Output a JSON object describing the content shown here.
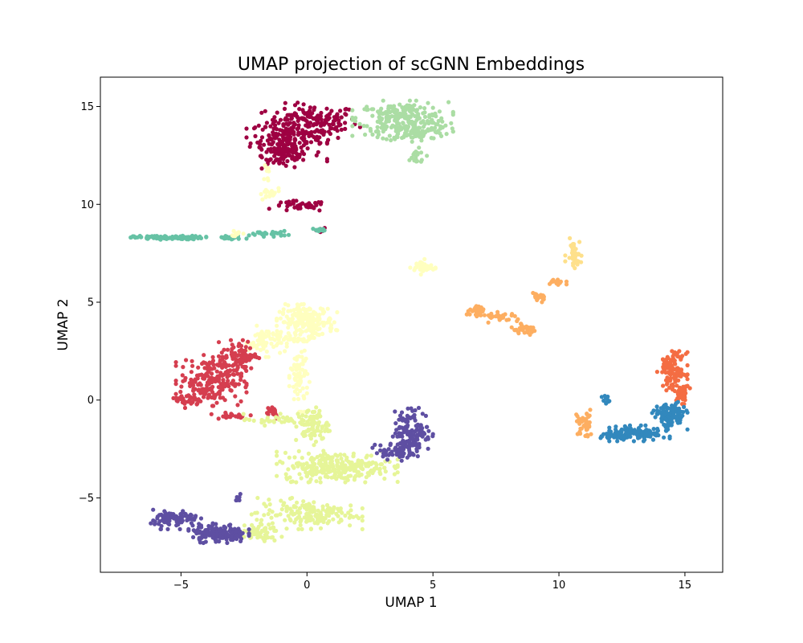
{
  "chart_data": {
    "type": "scatter",
    "title": "UMAP projection of scGNN Embeddings",
    "xlabel": "UMAP 1",
    "ylabel": "UMAP 2",
    "xlim": [
      -8.2,
      16.5
    ],
    "ylim": [
      -8.8,
      16.5
    ],
    "xticks": [
      {
        "v": -5,
        "label": "−5"
      },
      {
        "v": 0,
        "label": "0"
      },
      {
        "v": 5,
        "label": "5"
      },
      {
        "v": 10,
        "label": "10"
      },
      {
        "v": 15,
        "label": "15"
      }
    ],
    "yticks": [
      {
        "v": -5,
        "label": "−5"
      },
      {
        "v": 0,
        "label": "0"
      },
      {
        "v": 5,
        "label": "5"
      },
      {
        "v": 10,
        "label": "10"
      },
      {
        "v": 15,
        "label": "15"
      }
    ],
    "grid": false,
    "legend": "none",
    "clusters": [
      {
        "color": "#9e0142",
        "regions": [
          [
            0.2,
            14.2,
            2.0,
            1.0,
            160
          ],
          [
            -0.8,
            13.3,
            1.6,
            1.1,
            160
          ],
          [
            -0.9,
            12.5,
            1.0,
            0.8,
            60
          ],
          [
            -0.3,
            9.9,
            1.2,
            0.3,
            40
          ],
          [
            0.5,
            8.7,
            0.3,
            0.15,
            10
          ]
        ]
      },
      {
        "color": "#abdda4",
        "regions": [
          [
            3.8,
            14.4,
            2.0,
            0.9,
            220
          ],
          [
            4.3,
            13.7,
            1.5,
            0.5,
            90
          ],
          [
            4.3,
            12.4,
            0.5,
            0.5,
            20
          ]
        ]
      },
      {
        "color": "#66c2a5",
        "regions": [
          [
            -5.5,
            8.3,
            1.5,
            0.1,
            120
          ],
          [
            -3.0,
            8.3,
            0.6,
            0.12,
            30
          ],
          [
            -1.5,
            8.5,
            0.8,
            0.15,
            25
          ],
          [
            0.5,
            8.7,
            0.3,
            0.1,
            12
          ]
        ]
      },
      {
        "color": "#ffffbf",
        "regions": [
          [
            0.0,
            4.0,
            1.2,
            0.9,
            200
          ],
          [
            -1.6,
            3.0,
            0.8,
            0.8,
            70
          ],
          [
            -0.3,
            1.2,
            0.4,
            1.8,
            80
          ],
          [
            -1.5,
            10.5,
            0.5,
            0.4,
            20
          ],
          [
            4.6,
            6.8,
            0.5,
            0.4,
            40
          ],
          [
            -2.8,
            8.5,
            0.3,
            0.2,
            10
          ],
          [
            -1.6,
            11.5,
            0.1,
            0.5,
            8
          ]
        ]
      },
      {
        "color": "#d53e4f",
        "regions": [
          [
            -3.8,
            1.0,
            1.4,
            1.3,
            220
          ],
          [
            -2.7,
            2.3,
            0.8,
            0.8,
            80
          ],
          [
            -4.7,
            0.0,
            0.6,
            0.4,
            30
          ],
          [
            -1.4,
            -0.6,
            0.4,
            0.4,
            20
          ],
          [
            -3.0,
            -0.8,
            1.0,
            0.2,
            20
          ]
        ]
      },
      {
        "color": "#e6f598",
        "regions": [
          [
            1.2,
            -3.4,
            2.4,
            0.8,
            280
          ],
          [
            0.2,
            -1.3,
            0.7,
            1.0,
            80
          ],
          [
            0.0,
            -5.8,
            2.2,
            0.8,
            160
          ],
          [
            -2.0,
            -6.8,
            1.0,
            0.5,
            60
          ],
          [
            -1.4,
            -1.0,
            1.2,
            0.3,
            30
          ]
        ]
      },
      {
        "color": "#5e4fa2",
        "regions": [
          [
            4.2,
            -1.6,
            0.8,
            1.2,
            140
          ],
          [
            3.5,
            -2.6,
            0.9,
            0.5,
            60
          ],
          [
            -3.5,
            -6.8,
            1.2,
            0.5,
            150
          ],
          [
            -5.2,
            -6.1,
            1.0,
            0.5,
            90
          ],
          [
            -2.7,
            -5.0,
            0.15,
            0.2,
            6
          ]
        ]
      },
      {
        "color": "#fdae61",
        "regions": [
          [
            6.8,
            4.5,
            0.5,
            0.3,
            30
          ],
          [
            7.8,
            4.2,
            0.8,
            0.3,
            30
          ],
          [
            8.6,
            3.6,
            0.6,
            0.3,
            30
          ],
          [
            9.2,
            5.2,
            0.4,
            0.3,
            20
          ],
          [
            9.9,
            6.0,
            0.4,
            0.3,
            15
          ],
          [
            11.0,
            -1.2,
            0.4,
            0.8,
            40
          ]
        ]
      },
      {
        "color": "#fee08b",
        "regions": [
          [
            10.6,
            7.5,
            0.35,
            0.8,
            40
          ]
        ]
      },
      {
        "color": "#f46d43",
        "regions": [
          [
            14.6,
            1.5,
            0.5,
            1.0,
            100
          ],
          [
            14.9,
            0.3,
            0.3,
            0.5,
            40
          ],
          [
            14.2,
            1.8,
            0.3,
            0.4,
            20
          ]
        ]
      },
      {
        "color": "#3288bd",
        "regions": [
          [
            14.4,
            -0.8,
            0.7,
            0.7,
            120
          ],
          [
            13.2,
            -1.7,
            1.2,
            0.4,
            120
          ],
          [
            12.2,
            -1.8,
            0.6,
            0.3,
            40
          ],
          [
            11.9,
            0.0,
            0.2,
            0.3,
            10
          ]
        ]
      }
    ]
  }
}
